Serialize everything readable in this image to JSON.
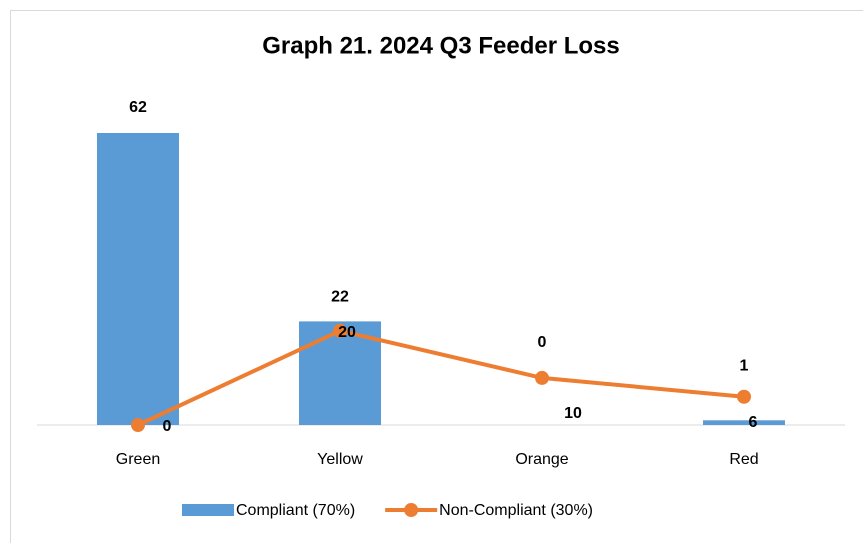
{
  "chart_data": {
    "type": "bar-line",
    "title": "Graph 21. 2024 Q3 Feeder Loss",
    "categories": [
      "Green",
      "Yellow",
      "Orange",
      "Red"
    ],
    "series": [
      {
        "name": "Compliant (70%)",
        "type": "bar",
        "color": "#5b9bd5",
        "values": [
          62,
          22,
          0,
          1
        ]
      },
      {
        "name": "Non-Compliant (30%)",
        "type": "line",
        "color": "#ed7d31",
        "values": [
          0,
          20,
          10,
          6
        ]
      }
    ]
  }
}
